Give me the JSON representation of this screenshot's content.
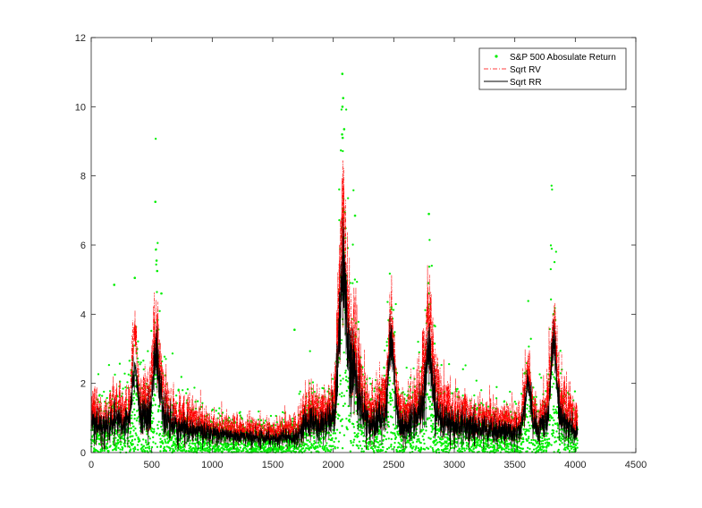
{
  "chart_data": {
    "type": "line",
    "title": "",
    "xlabel": "",
    "ylabel": "",
    "xlim": [
      0,
      4500
    ],
    "ylim": [
      0,
      12
    ],
    "xticks": [
      0,
      500,
      1000,
      1500,
      2000,
      2500,
      3000,
      3500,
      4000,
      4500
    ],
    "yticks": [
      0,
      2,
      4,
      6,
      8,
      10,
      12
    ],
    "grid": false,
    "legend_position": "top-right",
    "n_observations": 4020,
    "series": [
      {
        "name": "S&P 500 Abosulate Return",
        "style": "points",
        "color": "#00ee00",
        "notable_points": [
          {
            "x": 530,
            "y": 7.25
          },
          {
            "x": 540,
            "y": 5.55
          },
          {
            "x": 545,
            "y": 5.25
          },
          {
            "x": 580,
            "y": 4.6
          },
          {
            "x": 360,
            "y": 5.05
          },
          {
            "x": 190,
            "y": 4.85
          },
          {
            "x": 2075,
            "y": 10.95
          },
          {
            "x": 2082,
            "y": 10.25
          },
          {
            "x": 2076,
            "y": 10.0
          },
          {
            "x": 2090,
            "y": 9.35
          },
          {
            "x": 2073,
            "y": 9.2
          },
          {
            "x": 2078,
            "y": 9.1
          },
          {
            "x": 2080,
            "y": 7.05
          },
          {
            "x": 2095,
            "y": 6.95
          },
          {
            "x": 2180,
            "y": 6.85
          },
          {
            "x": 2790,
            "y": 6.9
          },
          {
            "x": 2785,
            "y": 4.9
          },
          {
            "x": 2790,
            "y": 4.6
          },
          {
            "x": 3820,
            "y": 4.0
          },
          {
            "x": 2480,
            "y": 4.2
          },
          {
            "x": 1680,
            "y": 3.55
          }
        ]
      },
      {
        "name": "Sqrt RV",
        "style": "dash-dot",
        "color": "#ff0000",
        "anchors": [
          {
            "x": 0,
            "y": 1.2
          },
          {
            "x": 100,
            "y": 1.0
          },
          {
            "x": 200,
            "y": 1.3
          },
          {
            "x": 350,
            "y": 1.1
          },
          {
            "x": 500,
            "y": 1.6
          },
          {
            "x": 550,
            "y": 2.0
          },
          {
            "x": 650,
            "y": 1.1
          },
          {
            "x": 800,
            "y": 0.95
          },
          {
            "x": 1000,
            "y": 0.75
          },
          {
            "x": 1200,
            "y": 0.65
          },
          {
            "x": 1500,
            "y": 0.6
          },
          {
            "x": 1700,
            "y": 0.7
          },
          {
            "x": 1800,
            "y": 1.3
          },
          {
            "x": 1900,
            "y": 1.1
          },
          {
            "x": 2000,
            "y": 1.3
          },
          {
            "x": 2080,
            "y": 4.0
          },
          {
            "x": 2150,
            "y": 2.6
          },
          {
            "x": 2300,
            "y": 1.2
          },
          {
            "x": 2480,
            "y": 1.6
          },
          {
            "x": 2600,
            "y": 1.0
          },
          {
            "x": 2790,
            "y": 2.1
          },
          {
            "x": 2900,
            "y": 1.3
          },
          {
            "x": 3200,
            "y": 1.0
          },
          {
            "x": 3500,
            "y": 0.85
          },
          {
            "x": 3600,
            "y": 1.2
          },
          {
            "x": 3700,
            "y": 0.9
          },
          {
            "x": 3820,
            "y": 1.6
          },
          {
            "x": 4020,
            "y": 0.9
          }
        ],
        "spikes": [
          {
            "x": 360,
            "y": 3.8
          },
          {
            "x": 535,
            "y": 3.7
          },
          {
            "x": 2080,
            "y": 6.65
          },
          {
            "x": 2090,
            "y": 6.0
          },
          {
            "x": 2160,
            "y": 3.6
          },
          {
            "x": 2480,
            "y": 4.3
          },
          {
            "x": 2790,
            "y": 4.1
          },
          {
            "x": 3610,
            "y": 2.6
          },
          {
            "x": 3820,
            "y": 3.85
          }
        ]
      },
      {
        "name": "Sqrt RR",
        "style": "solid",
        "color": "#000000",
        "anchors": [
          {
            "x": 0,
            "y": 0.95
          },
          {
            "x": 100,
            "y": 0.8
          },
          {
            "x": 200,
            "y": 1.0
          },
          {
            "x": 350,
            "y": 0.9
          },
          {
            "x": 500,
            "y": 1.3
          },
          {
            "x": 550,
            "y": 1.6
          },
          {
            "x": 650,
            "y": 0.85
          },
          {
            "x": 800,
            "y": 0.7
          },
          {
            "x": 1000,
            "y": 0.55
          },
          {
            "x": 1200,
            "y": 0.5
          },
          {
            "x": 1500,
            "y": 0.42
          },
          {
            "x": 1700,
            "y": 0.5
          },
          {
            "x": 1800,
            "y": 1.0
          },
          {
            "x": 1900,
            "y": 0.85
          },
          {
            "x": 2000,
            "y": 1.0
          },
          {
            "x": 2080,
            "y": 3.3
          },
          {
            "x": 2150,
            "y": 2.0
          },
          {
            "x": 2300,
            "y": 0.9
          },
          {
            "x": 2480,
            "y": 1.2
          },
          {
            "x": 2600,
            "y": 0.75
          },
          {
            "x": 2790,
            "y": 1.6
          },
          {
            "x": 2900,
            "y": 0.95
          },
          {
            "x": 3200,
            "y": 0.75
          },
          {
            "x": 3500,
            "y": 0.6
          },
          {
            "x": 3600,
            "y": 0.9
          },
          {
            "x": 3700,
            "y": 0.65
          },
          {
            "x": 3820,
            "y": 1.2
          },
          {
            "x": 4020,
            "y": 0.6
          }
        ],
        "spikes": [
          {
            "x": 360,
            "y": 2.6
          },
          {
            "x": 535,
            "y": 3.3
          },
          {
            "x": 2080,
            "y": 5.8
          },
          {
            "x": 2090,
            "y": 5.3
          },
          {
            "x": 2160,
            "y": 3.0
          },
          {
            "x": 2480,
            "y": 3.7
          },
          {
            "x": 2790,
            "y": 3.4
          },
          {
            "x": 3610,
            "y": 2.2
          },
          {
            "x": 3820,
            "y": 3.85
          }
        ]
      }
    ]
  }
}
